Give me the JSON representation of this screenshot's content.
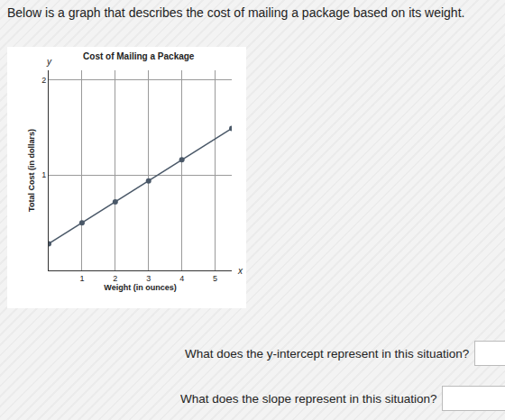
{
  "heading": "Below is a graph that describes the cost of mailing a package based on its weight.",
  "questions": [
    "What does the y-intercept represent in this situation?",
    "What does the slope represent in this situation?"
  ],
  "chart_data": {
    "type": "line",
    "title": "Cost of Mailing a Package",
    "x_label": "Weight (in ounces)",
    "y_label": "Total Cost (in dollars)",
    "x": [
      0,
      1,
      2,
      3,
      4,
      5.5
    ],
    "values": [
      0.28,
      0.5,
      0.72,
      0.94,
      1.16,
      1.49
    ],
    "color": "#4a5868",
    "marker": "circle",
    "line_style": "solid",
    "xlim": [
      0,
      5.5
    ],
    "xticks": [
      1,
      2,
      3,
      4,
      5
    ],
    "ylim": [
      0,
      2.1
    ],
    "yticks": [
      1,
      2
    ],
    "grid": true,
    "annotations": [
      {
        "text": "y"
      },
      {
        "text": "x"
      }
    ]
  }
}
